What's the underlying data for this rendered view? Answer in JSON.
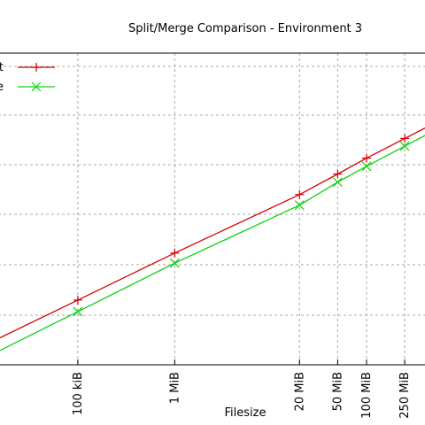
{
  "chart_data": {
    "type": "line",
    "title": "Split/Merge Comparison - Environment 3",
    "xlabel": "Filesize",
    "ylabel": "",
    "x_scale": "log",
    "x_ticks": [
      {
        "value_bytes": 102400,
        "label": "100 kiB"
      },
      {
        "value_bytes": 1048576,
        "label": "1 MiB"
      },
      {
        "value_bytes": 20971520,
        "label": "20 MiB"
      },
      {
        "value_bytes": 52428800,
        "label": "50 MiB"
      },
      {
        "value_bytes": 104857600,
        "label": "100 MiB"
      },
      {
        "value_bytes": 262144000,
        "label": "250 MiB"
      }
    ],
    "grid": true,
    "legend": {
      "placement": "top-left",
      "entries": [
        {
          "label_visible": "t",
          "series": "split"
        },
        {
          "label_visible": "e",
          "series": "merge"
        }
      ]
    },
    "series": [
      {
        "name": "t",
        "color": "#d40000",
        "marker": "plus",
        "x": [
          102400,
          1048576,
          20971520,
          52428800,
          104857600,
          262144000
        ],
        "y": [
          1.35,
          2.33,
          3.55,
          3.98,
          4.31,
          4.72
        ]
      },
      {
        "name": "e",
        "color": "#10d010",
        "marker": "cross",
        "x": [
          102400,
          1048576,
          20971520,
          52428800,
          104857600,
          262144000
        ],
        "y": [
          1.11,
          2.12,
          3.33,
          3.81,
          4.14,
          4.56
        ]
      }
    ],
    "ylim": [
      0,
      6.5
    ]
  }
}
